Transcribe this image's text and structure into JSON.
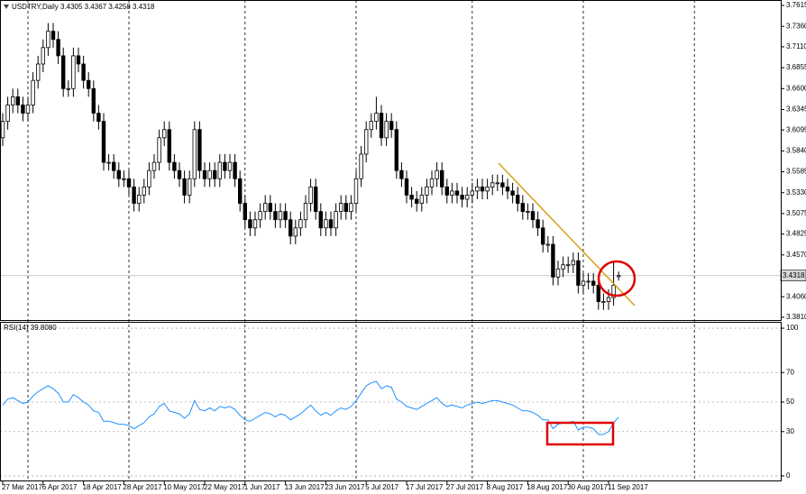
{
  "chart_data": [
    {
      "type": "candlestick",
      "title": "USDTRY,Daily 3.4305 3.4367 3.4258 3.4318",
      "categories": [
        "27 Mar 2017",
        null,
        null,
        null,
        null,
        null,
        null,
        null,
        "6 Apr 2017",
        null,
        null,
        null,
        null,
        null,
        null,
        null,
        "18 Apr 2017",
        null,
        null,
        null,
        null,
        null,
        null,
        null,
        "28 Apr 2017",
        null,
        null,
        null,
        null,
        null,
        null,
        null,
        "10 May 2017",
        null,
        null,
        null,
        null,
        null,
        null,
        null,
        "22 May 2017",
        null,
        null,
        null,
        null,
        null,
        null,
        null,
        "1 Jun 2017",
        null,
        null,
        null,
        null,
        null,
        null,
        null,
        "13 Jun 2017",
        null,
        null,
        null,
        null,
        null,
        null,
        null,
        "23 Jun 2017",
        null,
        null,
        null,
        null,
        null,
        null,
        null,
        "5 Jul 2017",
        null,
        null,
        null,
        null,
        null,
        null,
        null,
        "17 Jul 2017",
        null,
        null,
        null,
        null,
        null,
        null,
        null,
        "27 Jul 2017",
        null,
        null,
        null,
        null,
        null,
        null,
        null,
        "8 Aug 2017",
        null,
        null,
        null,
        null,
        null,
        null,
        null,
        "18 Aug 2017",
        null,
        null,
        null,
        null,
        null,
        null,
        null,
        "30 Aug 2017",
        null,
        null,
        null,
        null,
        null,
        null,
        null,
        "11 Sep 2017",
        null,
        null
      ],
      "open": [
        3.6,
        3.62,
        3.64,
        3.65,
        3.64,
        3.63,
        3.64,
        3.67,
        3.69,
        3.71,
        3.73,
        3.72,
        3.7,
        3.66,
        3.66,
        3.7,
        3.69,
        3.67,
        3.66,
        3.63,
        3.62,
        3.57,
        3.57,
        3.56,
        3.55,
        3.55,
        3.54,
        3.52,
        3.53,
        3.54,
        3.56,
        3.57,
        3.6,
        3.61,
        3.57,
        3.56,
        3.55,
        3.53,
        3.55,
        3.61,
        3.56,
        3.55,
        3.56,
        3.55,
        3.57,
        3.56,
        3.57,
        3.55,
        3.52,
        3.5,
        3.49,
        3.5,
        3.51,
        3.52,
        3.51,
        3.5,
        3.51,
        3.5,
        3.48,
        3.49,
        3.5,
        3.52,
        3.54,
        3.51,
        3.49,
        3.5,
        3.49,
        3.51,
        3.52,
        3.51,
        3.52,
        3.55,
        3.58,
        3.61,
        3.62,
        3.63,
        3.6,
        3.62,
        3.61,
        3.56,
        3.55,
        3.53,
        3.525,
        3.52,
        3.53,
        3.54,
        3.55,
        3.56,
        3.54,
        3.53,
        3.535,
        3.53,
        3.525,
        3.53,
        3.535,
        3.54,
        3.535,
        3.54,
        3.545,
        3.545,
        3.54,
        3.535,
        3.53,
        3.52,
        3.51,
        3.51,
        3.5,
        3.49,
        3.47,
        3.47,
        3.43,
        3.44,
        3.445,
        3.445,
        3.45,
        3.42,
        3.425,
        3.425,
        3.42,
        3.4,
        3.4,
        3.405,
        3.4305
      ],
      "high": [
        3.63,
        3.65,
        3.66,
        3.66,
        3.65,
        3.65,
        3.68,
        3.7,
        3.72,
        3.74,
        3.74,
        3.73,
        3.71,
        3.67,
        3.71,
        3.71,
        3.7,
        3.68,
        3.67,
        3.64,
        3.63,
        3.58,
        3.58,
        3.57,
        3.56,
        3.56,
        3.55,
        3.54,
        3.55,
        3.57,
        3.58,
        3.61,
        3.62,
        3.62,
        3.58,
        3.57,
        3.56,
        3.56,
        3.62,
        3.62,
        3.57,
        3.57,
        3.57,
        3.58,
        3.58,
        3.58,
        3.58,
        3.56,
        3.53,
        3.51,
        3.51,
        3.52,
        3.53,
        3.53,
        3.52,
        3.52,
        3.52,
        3.51,
        3.5,
        3.51,
        3.53,
        3.55,
        3.55,
        3.52,
        3.51,
        3.51,
        3.52,
        3.53,
        3.53,
        3.53,
        3.56,
        3.59,
        3.62,
        3.63,
        3.65,
        3.64,
        3.63,
        3.63,
        3.62,
        3.57,
        3.56,
        3.54,
        3.535,
        3.54,
        3.55,
        3.56,
        3.57,
        3.57,
        3.55,
        3.545,
        3.545,
        3.54,
        3.54,
        3.545,
        3.55,
        3.55,
        3.55,
        3.555,
        3.555,
        3.555,
        3.55,
        3.545,
        3.54,
        3.53,
        3.52,
        3.52,
        3.51,
        3.5,
        3.48,
        3.48,
        3.45,
        3.455,
        3.455,
        3.46,
        3.46,
        3.435,
        3.435,
        3.435,
        3.43,
        3.41,
        3.415,
        3.45,
        3.4367
      ],
      "low": [
        3.59,
        3.61,
        3.63,
        3.63,
        3.62,
        3.62,
        3.63,
        3.66,
        3.68,
        3.7,
        3.71,
        3.69,
        3.65,
        3.65,
        3.65,
        3.68,
        3.66,
        3.65,
        3.62,
        3.61,
        3.56,
        3.56,
        3.55,
        3.54,
        3.54,
        3.53,
        3.51,
        3.51,
        3.52,
        3.53,
        3.55,
        3.56,
        3.59,
        3.56,
        3.55,
        3.54,
        3.52,
        3.52,
        3.54,
        3.55,
        3.54,
        3.54,
        3.54,
        3.54,
        3.55,
        3.55,
        3.54,
        3.51,
        3.49,
        3.48,
        3.48,
        3.49,
        3.5,
        3.5,
        3.49,
        3.49,
        3.49,
        3.47,
        3.47,
        3.48,
        3.49,
        3.51,
        3.5,
        3.48,
        3.48,
        3.48,
        3.48,
        3.5,
        3.5,
        3.5,
        3.51,
        3.54,
        3.57,
        3.6,
        3.61,
        3.59,
        3.59,
        3.6,
        3.55,
        3.54,
        3.52,
        3.515,
        3.51,
        3.51,
        3.52,
        3.53,
        3.54,
        3.53,
        3.52,
        3.52,
        3.52,
        3.515,
        3.515,
        3.52,
        3.525,
        3.525,
        3.525,
        3.53,
        3.535,
        3.53,
        3.525,
        3.52,
        3.51,
        3.5,
        3.5,
        3.49,
        3.48,
        3.46,
        3.46,
        3.42,
        3.42,
        3.43,
        3.435,
        3.435,
        3.41,
        3.41,
        3.415,
        3.41,
        3.39,
        3.39,
        3.39,
        3.395,
        3.4258
      ],
      "close": [
        3.62,
        3.64,
        3.65,
        3.64,
        3.63,
        3.64,
        3.67,
        3.69,
        3.71,
        3.73,
        3.72,
        3.7,
        3.66,
        3.66,
        3.7,
        3.69,
        3.67,
        3.66,
        3.63,
        3.62,
        3.57,
        3.57,
        3.56,
        3.55,
        3.55,
        3.54,
        3.52,
        3.53,
        3.54,
        3.56,
        3.57,
        3.6,
        3.61,
        3.57,
        3.56,
        3.55,
        3.53,
        3.55,
        3.61,
        3.56,
        3.55,
        3.56,
        3.55,
        3.57,
        3.56,
        3.57,
        3.55,
        3.52,
        3.5,
        3.49,
        3.5,
        3.51,
        3.52,
        3.51,
        3.5,
        3.51,
        3.5,
        3.48,
        3.49,
        3.5,
        3.52,
        3.54,
        3.51,
        3.49,
        3.5,
        3.49,
        3.51,
        3.52,
        3.51,
        3.52,
        3.55,
        3.58,
        3.61,
        3.62,
        3.63,
        3.6,
        3.62,
        3.61,
        3.56,
        3.55,
        3.53,
        3.525,
        3.52,
        3.53,
        3.54,
        3.55,
        3.56,
        3.54,
        3.53,
        3.535,
        3.53,
        3.525,
        3.53,
        3.535,
        3.54,
        3.535,
        3.54,
        3.545,
        3.545,
        3.54,
        3.535,
        3.53,
        3.52,
        3.51,
        3.51,
        3.5,
        3.49,
        3.47,
        3.47,
        3.43,
        3.44,
        3.445,
        3.445,
        3.45,
        3.42,
        3.425,
        3.425,
        3.42,
        3.4,
        3.4,
        3.405,
        3.42,
        3.4318
      ],
      "ylim": [
        3.3776,
        3.7681
      ],
      "yticks": [
        3.7615,
        {
          "value": 3.736,
          "label": "3.7360"
        },
        {
          "value": 3.711,
          "label": "3.7110"
        },
        3.6855,
        {
          "value": 3.66,
          "label": "3.6600"
        },
        3.6345,
        3.6095,
        {
          "value": 3.584,
          "label": "3.5840"
        },
        3.5585,
        {
          "value": 3.533,
          "label": "3.5330"
        },
        3.5075,
        3.4825,
        {
          "value": 3.457,
          "label": "3.4570"
        },
        {
          "value": 3.406,
          "label": "3.4060"
        },
        {
          "value": 3.381,
          "label": "3.3810"
        }
      ],
      "color": "#000000"
    },
    {
      "type": "line",
      "title": "RSI(14) 39.8080",
      "color": "#1e90ff",
      "values": [
        48,
        52,
        53,
        51,
        49,
        50,
        54,
        57,
        59,
        61,
        59,
        56,
        50,
        50,
        55,
        53,
        50,
        48,
        44,
        43,
        37,
        37,
        36,
        35,
        35,
        34,
        32,
        34,
        36,
        40,
        42,
        47,
        49,
        44,
        43,
        42,
        39,
        42,
        51,
        45,
        44,
        46,
        44,
        47,
        46,
        47,
        45,
        41,
        38,
        37,
        39,
        41,
        43,
        42,
        40,
        42,
        41,
        38,
        40,
        42,
        45,
        48,
        44,
        41,
        43,
        41,
        44,
        46,
        45,
        47,
        51,
        56,
        61,
        63,
        64,
        59,
        61,
        60,
        52,
        50,
        47,
        46,
        45,
        47,
        49,
        51,
        53,
        49,
        47,
        48,
        47,
        46,
        48,
        49,
        50,
        49,
        50,
        51,
        51,
        50,
        49,
        48,
        46,
        44,
        44,
        43,
        41,
        38,
        38,
        32,
        35,
        36,
        36,
        37,
        31,
        33,
        33,
        32,
        28,
        28,
        30,
        36,
        39.808
      ],
      "ylim": [
        -3.7,
        104.3
      ],
      "yticks": [
        100,
        70,
        50,
        30,
        0
      ],
      "grid": true
    }
  ]
}
